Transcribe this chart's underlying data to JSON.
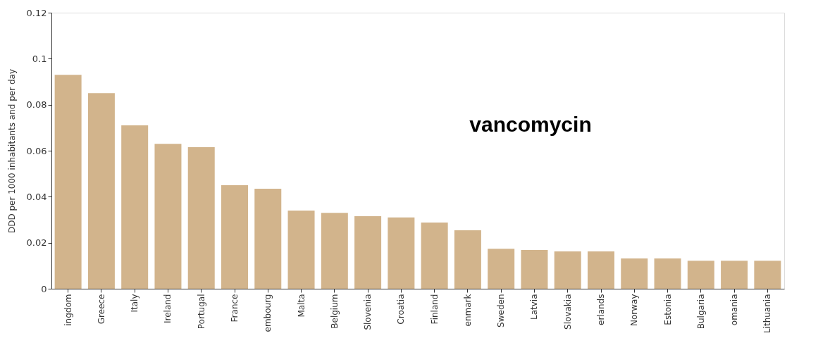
{
  "chart_data": {
    "type": "bar",
    "ylabel": "DDD per 1000 inhabitants and per day",
    "annotations": [
      "vancomycin"
    ],
    "categories": [
      "ingdom",
      "Greece",
      "Italy",
      "Ireland",
      "Portugal",
      "France",
      "embourg",
      "Malta",
      "Belgium",
      "Slovenia",
      "Croatia",
      "Finland",
      "enmark",
      "Sweden",
      "Latvia",
      "Slovakia",
      "erlands",
      "Norway",
      "Estonia",
      "Bulgaria",
      "omania",
      "Lithuania"
    ],
    "values": [
      0.093,
      0.085,
      0.071,
      0.063,
      0.0615,
      0.045,
      0.0435,
      0.034,
      0.033,
      0.0315,
      0.031,
      0.0288,
      0.0254,
      0.0174,
      0.0168,
      0.0162,
      0.0162,
      0.0132,
      0.0132,
      0.0122,
      0.0122,
      0.0122
    ],
    "color": "#d2b48c",
    "ylim": [
      0,
      0.12
    ],
    "yticks": [
      0,
      0.02,
      0.04,
      0.06,
      0.08,
      {
        "value": 0.1,
        "label": "0.1"
      },
      0.12
    ],
    "grid": false
  }
}
